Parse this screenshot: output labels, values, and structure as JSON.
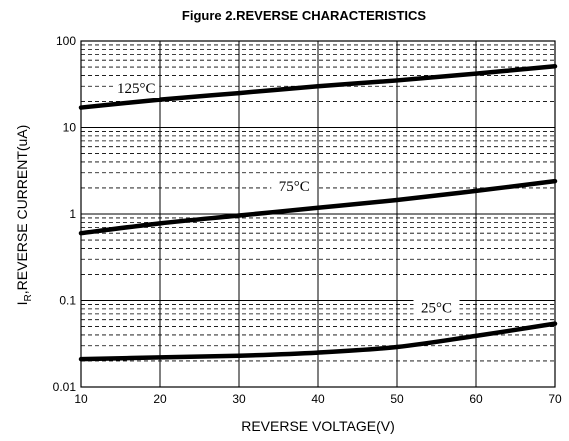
{
  "chart_data": {
    "type": "line",
    "title": "Figure 2.REVERSE CHARACTERISTICS",
    "xlabel": "REVERSE VOLTAGE(V)",
    "ylabel_main": "I",
    "ylabel_sub": "R",
    "ylabel_rest": ",REVERSE CURRENT(uA)",
    "xlim": [
      10,
      70
    ],
    "ylim": [
      0.01,
      100
    ],
    "yscale": "log",
    "grid": true,
    "x_ticks": [
      "10",
      "20",
      "30",
      "40",
      "50",
      "60",
      "70"
    ],
    "y_ticks": [
      "0.01",
      "0.1",
      "1",
      "10",
      "100"
    ],
    "series": [
      {
        "name": "125°C",
        "x": [
          10,
          20,
          30,
          40,
          50,
          60,
          70
        ],
        "y": [
          17,
          21,
          25,
          30,
          35,
          42,
          51
        ]
      },
      {
        "name": "75°C",
        "x": [
          10,
          20,
          30,
          40,
          50,
          60,
          70
        ],
        "y": [
          0.6,
          0.78,
          0.96,
          1.18,
          1.45,
          1.85,
          2.4
        ]
      },
      {
        "name": "25°C",
        "x": [
          10,
          20,
          30,
          40,
          50,
          60,
          70
        ],
        "y": [
          0.021,
          0.022,
          0.023,
          0.025,
          0.029,
          0.039,
          0.054
        ]
      }
    ]
  }
}
